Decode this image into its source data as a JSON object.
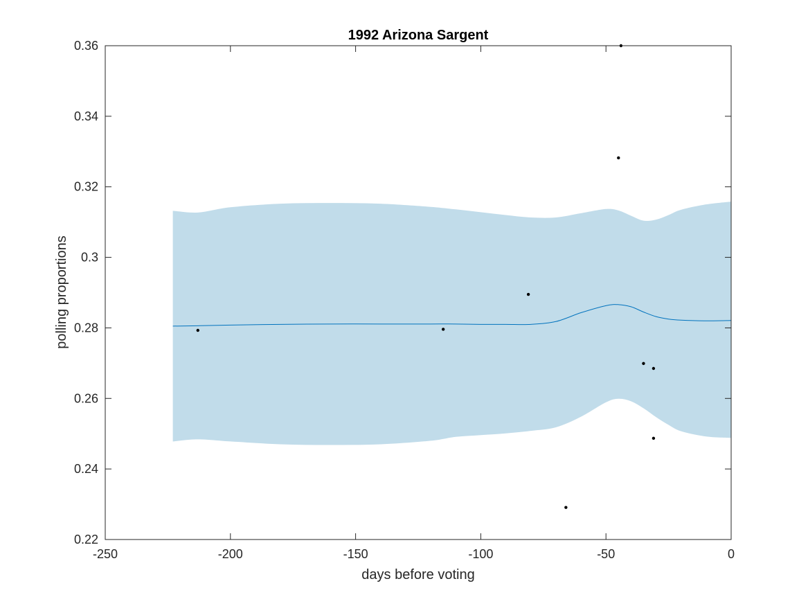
{
  "chart_data": {
    "type": "line",
    "title": "1992 Arizona Sargent",
    "xlabel": "days before voting",
    "ylabel": "polling proportions",
    "xlim": [
      -250,
      0
    ],
    "ylim": [
      0.22,
      0.36
    ],
    "xticks": [
      -250,
      -200,
      -150,
      -100,
      -50,
      0
    ],
    "xtick_labels": [
      "-250",
      "-200",
      "-150",
      "-100",
      "-50",
      "0"
    ],
    "yticks": [
      0.22,
      0.24,
      0.26,
      0.28,
      0.3,
      0.32,
      0.34,
      0.36
    ],
    "ytick_labels": [
      "0.22",
      "0.24",
      "0.26",
      "0.28",
      "0.3",
      "0.32",
      "0.34",
      "0.36"
    ],
    "grid": false,
    "colors": {
      "band": "#c1dcea",
      "line": "#0072bd",
      "points": "#000000",
      "axes": "#262626"
    },
    "band": {
      "x": [
        -223,
        -213,
        -200,
        -180,
        -160,
        -140,
        -120,
        -110,
        -100,
        -90,
        -80,
        -70,
        -60,
        -50,
        -45,
        -40,
        -35,
        -30,
        -25,
        -20,
        -10,
        0
      ],
      "upper": [
        0.3132,
        0.3127,
        0.3142,
        0.3152,
        0.3154,
        0.3152,
        0.3143,
        0.3136,
        0.3128,
        0.312,
        0.3113,
        0.3113,
        0.3125,
        0.3137,
        0.3133,
        0.3118,
        0.3104,
        0.3107,
        0.312,
        0.3135,
        0.315,
        0.3158
      ],
      "lower": [
        0.2478,
        0.2484,
        0.2478,
        0.247,
        0.2468,
        0.247,
        0.248,
        0.2491,
        0.2496,
        0.2501,
        0.2508,
        0.2518,
        0.2548,
        0.2589,
        0.2599,
        0.2592,
        0.2572,
        0.2547,
        0.2525,
        0.2507,
        0.2492,
        0.2488
      ]
    },
    "mean_line": {
      "x": [
        -223,
        -213,
        -200,
        -180,
        -160,
        -140,
        -120,
        -110,
        -100,
        -90,
        -80,
        -70,
        -60,
        -50,
        -45,
        -40,
        -35,
        -30,
        -25,
        -20,
        -10,
        0
      ],
      "y": [
        0.2805,
        0.2806,
        0.2808,
        0.281,
        0.2811,
        0.2811,
        0.2811,
        0.2811,
        0.281,
        0.281,
        0.281,
        0.2818,
        0.2843,
        0.2863,
        0.2866,
        0.286,
        0.2845,
        0.2832,
        0.2825,
        0.2822,
        0.282,
        0.2821
      ]
    },
    "points": {
      "x": [
        -213,
        -115,
        -81,
        -66,
        -45,
        -44,
        -35,
        -31,
        -31
      ],
      "y": [
        0.2793,
        0.2796,
        0.2895,
        0.2291,
        0.3282,
        0.36,
        0.2699,
        0.2685,
        0.2487
      ]
    }
  }
}
